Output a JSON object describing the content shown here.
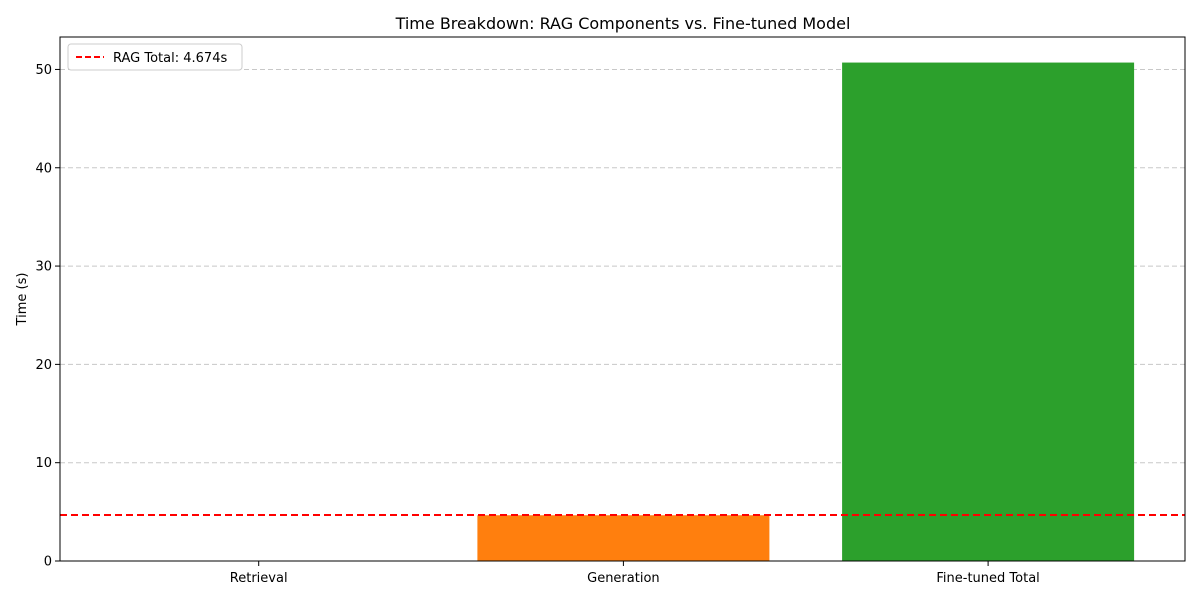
{
  "chart_data": {
    "type": "bar",
    "title": "Time Breakdown: RAG Components vs. Fine-tuned Model",
    "xlabel": "",
    "ylabel": "Time (s)",
    "categories": [
      "Retrieval",
      "Generation",
      "Fine-tuned Total"
    ],
    "values": [
      0.02,
      4.654,
      50.7
    ],
    "colors": [
      "#1f77b4",
      "#ff7f0e",
      "#2ca02c"
    ],
    "ylim": [
      0,
      53.3
    ],
    "yticks": [
      0,
      10,
      20,
      30,
      40,
      50
    ],
    "grid": "y-dashed",
    "reference_line": {
      "label": "RAG Total: 4.674s",
      "value": 4.674,
      "color": "#ff0000",
      "style": "dashed"
    },
    "legend_position": "top-left"
  }
}
